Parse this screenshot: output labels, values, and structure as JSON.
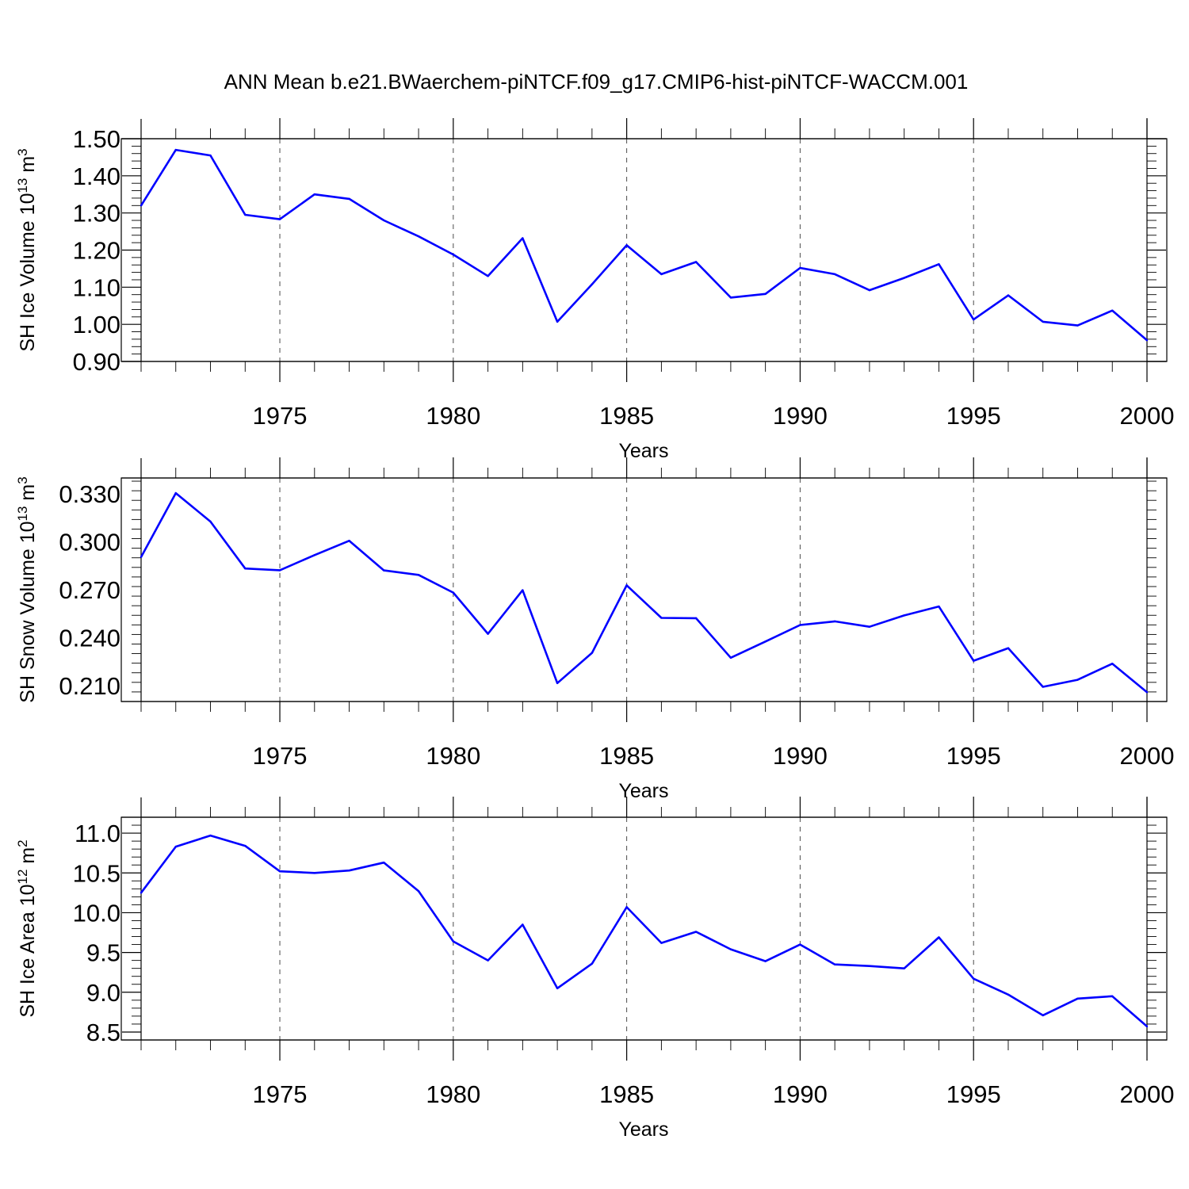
{
  "title": "ANN Mean b.e21.BWaerchem-piNTCF.f09_g17.CMIP6-hist-piNTCF-WACCM.001",
  "colors": {
    "series": "#0000ff",
    "axes": "#000000",
    "background": "#ffffff"
  },
  "chart_data": [
    {
      "type": "line",
      "ylabel": "SH Ice Volume 10^13 m^3",
      "ylabel_parts": {
        "prefix": "SH Ice Volume 10",
        "exp": "13",
        "unit": "m",
        "unit_exp": "3"
      },
      "xlabel": "Years",
      "xlim": [
        1971,
        2000
      ],
      "ylim": [
        0.9,
        1.5
      ],
      "xticks": [
        1975,
        1980,
        1985,
        1990,
        1995,
        2000
      ],
      "yticks": [
        0.9,
        1.0,
        1.1,
        1.2,
        1.3,
        1.4,
        1.5
      ],
      "ytick_labels": [
        "0.90",
        "1.00",
        "1.10",
        "1.20",
        "1.30",
        "1.40",
        "1.50"
      ],
      "grid": "vertical dashed at major x ticks",
      "x": [
        1971,
        1972,
        1973,
        1974,
        1975,
        1976,
        1977,
        1978,
        1979,
        1980,
        1981,
        1982,
        1983,
        1984,
        1985,
        1986,
        1987,
        1988,
        1989,
        1990,
        1991,
        1992,
        1993,
        1994,
        1995,
        1996,
        1997,
        1998,
        1999,
        2000
      ],
      "values": [
        1.32,
        1.47,
        1.455,
        1.295,
        1.283,
        1.35,
        1.338,
        1.28,
        1.237,
        1.188,
        1.13,
        1.232,
        1.007,
        1.108,
        1.213,
        1.135,
        1.168,
        1.072,
        1.082,
        1.152,
        1.135,
        1.092,
        1.125,
        1.162,
        1.013,
        1.078,
        1.007,
        0.997,
        1.037,
        0.957
      ]
    },
    {
      "type": "line",
      "ylabel": "SH Snow Volume 10^13 m^3",
      "ylabel_parts": {
        "prefix": "SH Snow Volume 10",
        "exp": "13",
        "unit": "m",
        "unit_exp": "3"
      },
      "xlabel": "Years",
      "xlim": [
        1971,
        2000
      ],
      "ylim": [
        0.2,
        0.34
      ],
      "xticks": [
        1975,
        1980,
        1985,
        1990,
        1995,
        2000
      ],
      "yticks": [
        0.21,
        0.24,
        0.27,
        0.3,
        0.33
      ],
      "ytick_labels": [
        "0.210",
        "0.240",
        "0.270",
        "0.300",
        "0.330"
      ],
      "grid": "vertical dashed at major x ticks",
      "x": [
        1971,
        1972,
        1973,
        1974,
        1975,
        1976,
        1977,
        1978,
        1979,
        1980,
        1981,
        1982,
        1983,
        1984,
        1985,
        1986,
        1987,
        1988,
        1989,
        1990,
        1991,
        1992,
        1993,
        1994,
        1995,
        1996,
        1997,
        1998,
        1999,
        2000
      ],
      "values": [
        0.2905,
        0.3305,
        0.3127,
        0.2833,
        0.2822,
        0.2917,
        0.3007,
        0.2821,
        0.2793,
        0.2682,
        0.2424,
        0.2697,
        0.2115,
        0.2305,
        0.2728,
        0.2524,
        0.2522,
        0.2274,
        0.2376,
        0.2479,
        0.2502,
        0.2468,
        0.2539,
        0.2595,
        0.2255,
        0.2334,
        0.2092,
        0.2136,
        0.2237,
        0.2058
      ]
    },
    {
      "type": "line",
      "ylabel": "SH Ice Area 10^12 m^2",
      "ylabel_parts": {
        "prefix": "SH Ice Area 10",
        "exp": "12",
        "unit": "m",
        "unit_exp": "2"
      },
      "xlabel": "Years",
      "xlim": [
        1971,
        2000
      ],
      "ylim": [
        8.4,
        11.2
      ],
      "xticks": [
        1975,
        1980,
        1985,
        1990,
        1995,
        2000
      ],
      "yticks": [
        8.5,
        9.0,
        9.5,
        10.0,
        10.5,
        11.0
      ],
      "ytick_labels": [
        "8.5",
        "9.0",
        "9.5",
        "10.0",
        "10.5",
        "11.0"
      ],
      "grid": "vertical dashed at major x ticks",
      "x": [
        1971,
        1972,
        1973,
        1974,
        1975,
        1976,
        1977,
        1978,
        1979,
        1980,
        1981,
        1982,
        1983,
        1984,
        1985,
        1986,
        1987,
        1988,
        1989,
        1990,
        1991,
        1992,
        1993,
        1994,
        1995,
        1996,
        1997,
        1998,
        1999,
        2000
      ],
      "values": [
        10.25,
        10.83,
        10.97,
        10.84,
        10.52,
        10.5,
        10.53,
        10.63,
        10.27,
        9.64,
        9.4,
        9.85,
        9.05,
        9.36,
        10.07,
        9.62,
        9.76,
        9.54,
        9.39,
        9.6,
        9.35,
        9.33,
        9.3,
        9.69,
        9.17,
        8.97,
        8.71,
        8.92,
        8.95,
        8.57
      ]
    }
  ]
}
